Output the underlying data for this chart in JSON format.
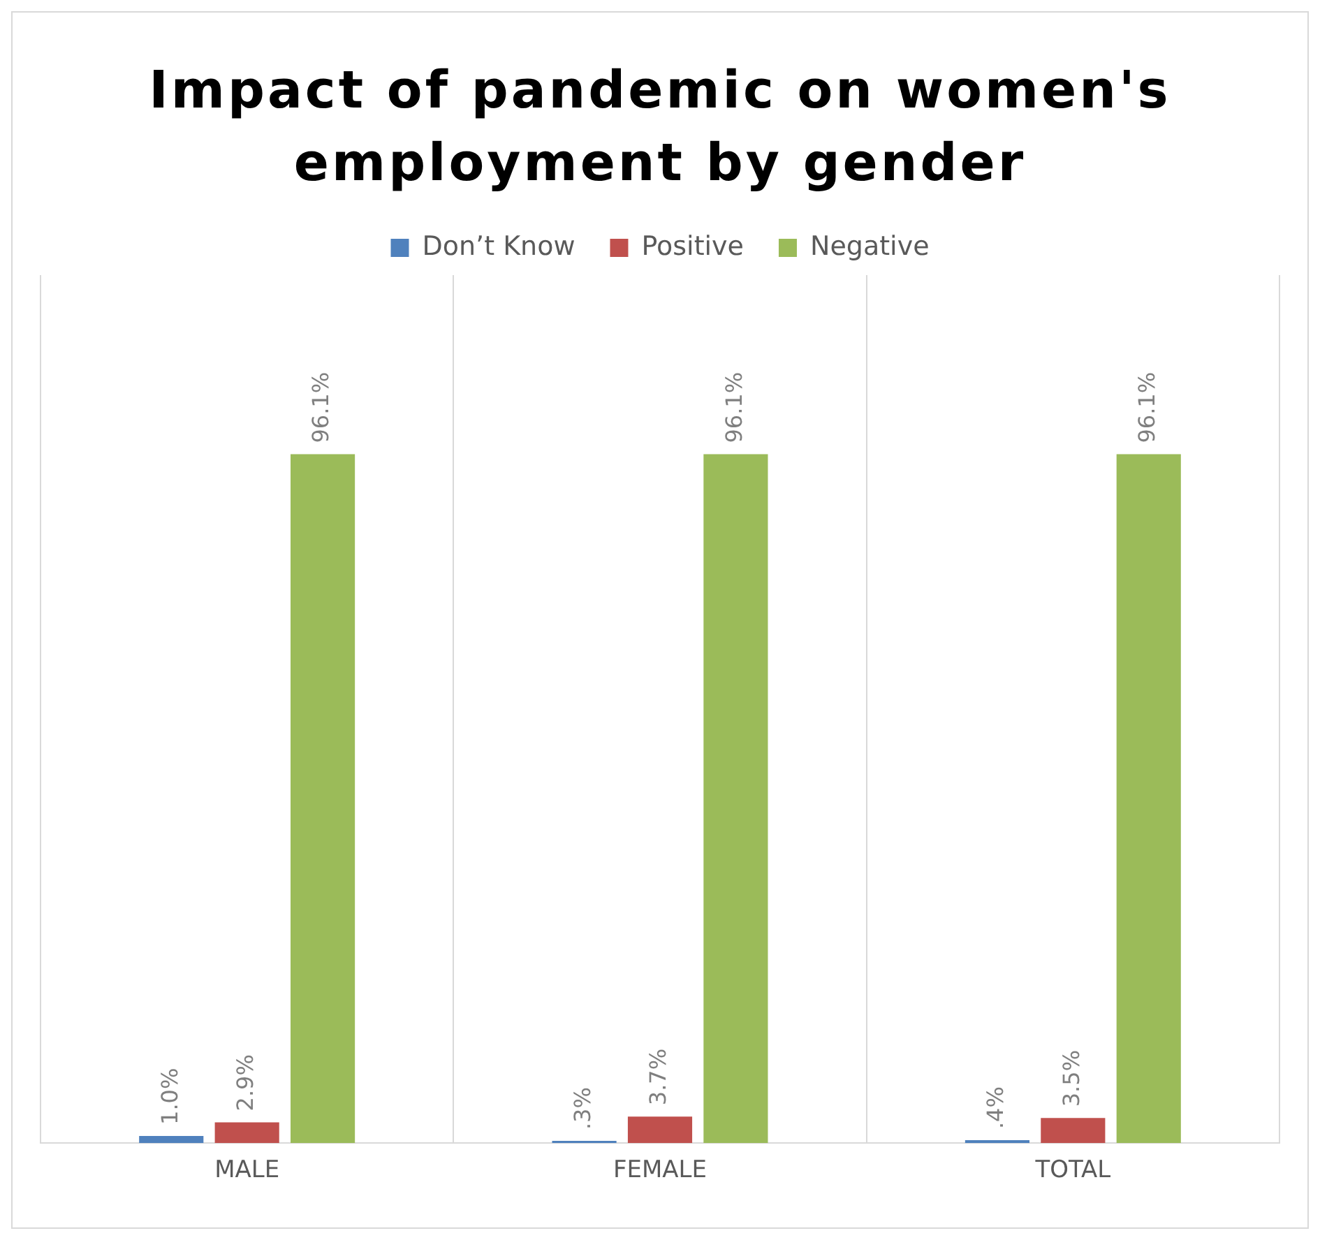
{
  "chart_data": {
    "type": "bar",
    "title": "Impact of pandemic on women's employment  by gender",
    "categories": [
      "MALE",
      "FEMALE",
      "TOTAL"
    ],
    "series": [
      {
        "name": "Don’t Know",
        "color": "#4f81bd",
        "values": [
          1.0,
          0.3,
          0.4
        ],
        "value_labels": [
          "1.0%",
          ".3%",
          ".4%"
        ]
      },
      {
        "name": "Positive",
        "color": "#c0504d",
        "values": [
          2.9,
          3.7,
          3.5
        ],
        "value_labels": [
          "2.9%",
          "3.7%",
          "3.5%"
        ]
      },
      {
        "name": "Negative",
        "color": "#9bbb59",
        "values": [
          96.1,
          96.1,
          96.1
        ],
        "value_labels": [
          "96.1%",
          "96.1%",
          "96.1%"
        ]
      }
    ],
    "grid": "x",
    "legend": "top"
  }
}
